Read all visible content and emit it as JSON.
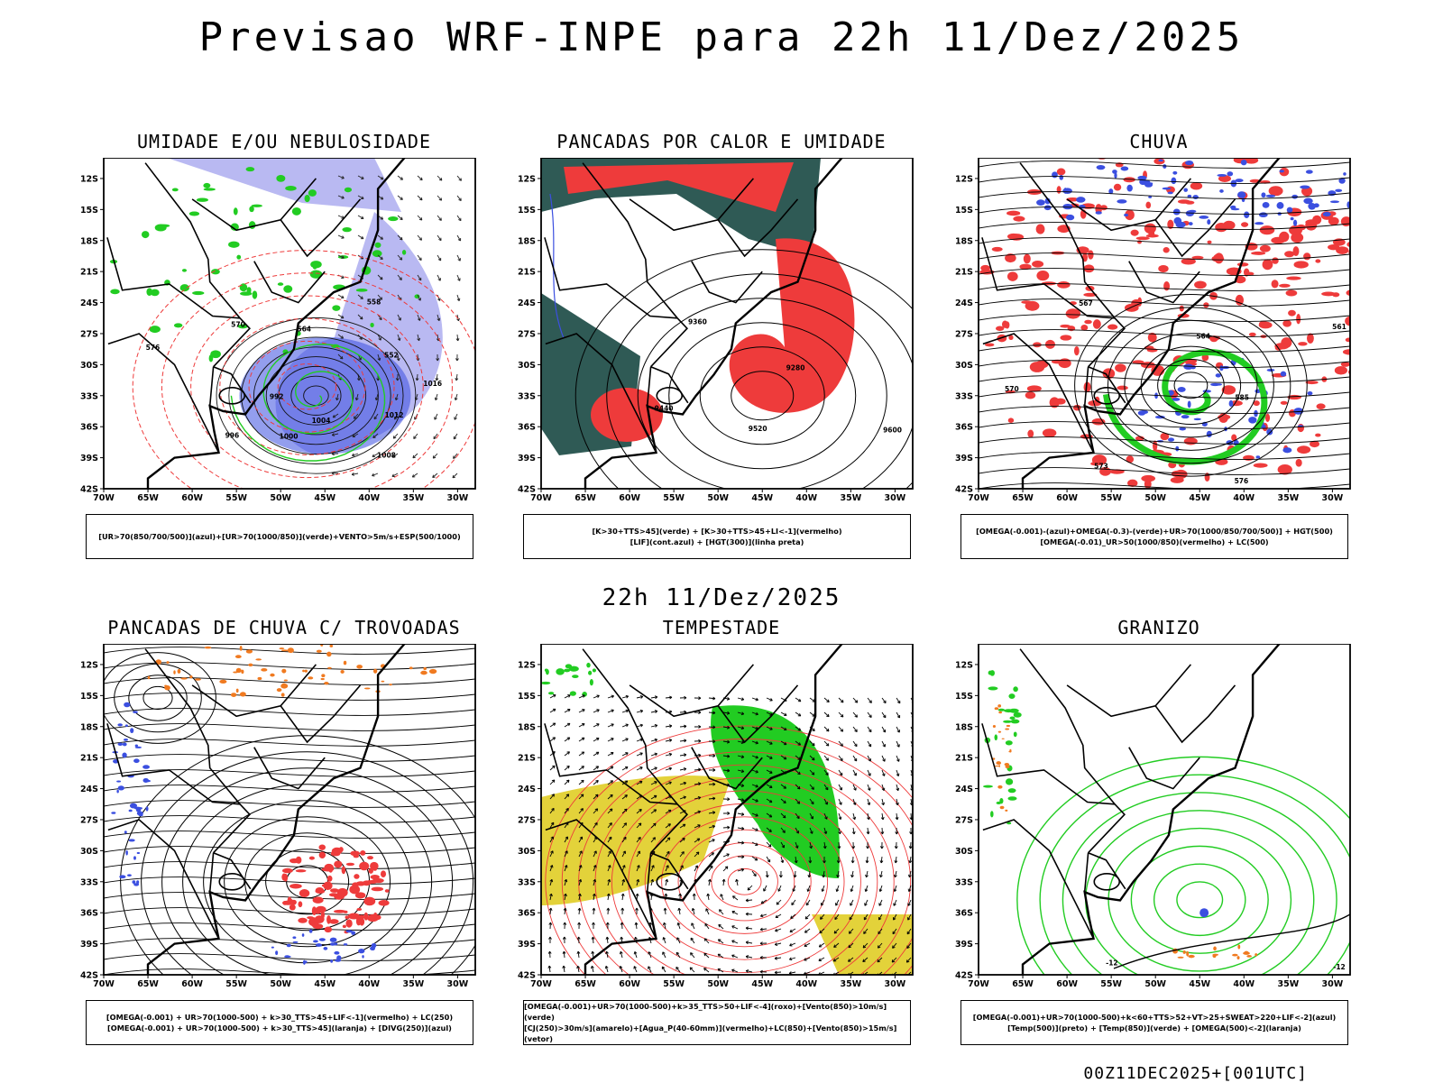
{
  "header": {
    "title": "Previsao WRF-INPE  para 22h 11/Dez/2025",
    "mid_date": "22h 11/Dez/2025"
  },
  "footer": "00Z11DEC2025+[001UTC]",
  "axes": {
    "lat_labels": [
      "12S",
      "15S",
      "18S",
      "21S",
      "24S",
      "27S",
      "30S",
      "33S",
      "36S",
      "39S",
      "42S"
    ],
    "lon_labels": [
      "70W",
      "65W",
      "60W",
      "55W",
      "50W",
      "45W",
      "40W",
      "35W",
      "30W"
    ]
  },
  "panels": [
    {
      "title": "UMIDADE E/OU NEBULOSIDADE",
      "legend": [
        "[UR>70(850/700/500)](azul)+[UR>70(1000/850)](verde)+VENTO>5m/s+ESP(500/1000)"
      ],
      "contour_labels": [
        "1012",
        "1008",
        "1004",
        "1000",
        "996",
        "992",
        "576",
        "570",
        "564",
        "558",
        "552",
        "1016"
      ]
    },
    {
      "title": "PANCADAS POR CALOR E UMIDADE",
      "legend": [
        "[K>30+TTS>45](verde) + [K>30+TTS>45+LI<-1](vermelho)",
        "[LIF](cont.azul) + [HGT(300)](linha preta)"
      ],
      "contour_labels": [
        "9600",
        "9520",
        "9440",
        "9360",
        "9280"
      ]
    },
    {
      "title": "CHUVA",
      "legend": [
        "[OMEGA(-0.001)-(azul)+OMEGA(-0.3)-(verde)+UR>70(1000/850/700/500)] + HGT(500)",
        "[OMEGA(-0.01)_UR>50(1000/850)(vermelho) + LC(500)"
      ],
      "contour_labels": [
        "585",
        "576",
        "573",
        "570",
        "567",
        "564",
        "561"
      ]
    },
    {
      "title": "PANCADAS DE CHUVA C/ TROVOADAS",
      "legend": [
        "[OMEGA(-0.001) + UR>70(1000-500) + k>30_TTS>45+LIF<-1](vermelho) + LC(250)",
        "[OMEGA(-0.001) + UR>70(1000-500) + k>30_TTS>45](laranja) + [DIVG(250)](azul)"
      ],
      "contour_labels": []
    },
    {
      "title": "TEMPESTADE",
      "legend": [
        "[OMEGA(-0.001)+UR>70(1000-500)+k>35_TTS>50+LIF<-4](roxo)+[Vento(850)>10m/s](verde)",
        "[CJ(250)>30m/s](amarelo)+[Agua_P(40-60mm)](vermelho)+LC(850)+[Vento(850)>15m/s](vetor)"
      ],
      "contour_labels": []
    },
    {
      "title": "GRANIZO",
      "legend": [
        "[OMEGA(-0.001)+UR>70(1000-500)+k<60+TTS>52+VT>25+SWEAT>220+LIF<-2](azul)",
        "[Temp(500)](preto) + [Temp(850)](verde) + [OMEGA(500)<-2](laranja)"
      ],
      "contour_labels": [
        "-12",
        "-12"
      ]
    }
  ],
  "chart_data": [
    {
      "type": "map",
      "title": "UMIDADE E/OU NEBULOSIDADE",
      "lon_range": [
        -70,
        -28
      ],
      "lat_range": [
        -42,
        -10
      ],
      "low_center": {
        "lon": -46,
        "lat": -33
      },
      "min_pressure": 992
    },
    {
      "type": "map",
      "title": "PANCADAS POR CALOR E UMIDADE",
      "lon_range": [
        -70,
        -28
      ],
      "lat_range": [
        -42,
        -10
      ],
      "low_center": {
        "lon": -45,
        "lat": -33
      },
      "min_hgt": 9280
    },
    {
      "type": "map",
      "title": "CHUVA",
      "lon_range": [
        -70,
        -28
      ],
      "lat_range": [
        -42,
        -10
      ],
      "low_center": {
        "lon": -46,
        "lat": -32
      },
      "min_hgt": 561
    },
    {
      "type": "map",
      "title": "PANCADAS DE CHUVA C/ TROVOADAS",
      "lon_range": [
        -70,
        -28
      ],
      "lat_range": [
        -42,
        -10
      ],
      "low_center": {
        "lon": -47,
        "lat": -33
      }
    },
    {
      "type": "map",
      "title": "TEMPESTADE",
      "lon_range": [
        -70,
        -28
      ],
      "lat_range": [
        -42,
        -10
      ],
      "low_center": {
        "lon": -47,
        "lat": -33
      }
    },
    {
      "type": "map",
      "title": "GRANIZO",
      "lon_range": [
        -70,
        -28
      ],
      "lat_range": [
        -42,
        -10
      ],
      "isotherm_labels": [
        "-12"
      ]
    }
  ],
  "colors": {
    "blue": "#3b4fe0",
    "lightblue": "#b9b9f2",
    "green": "#22cc22",
    "red": "#ee3b3b",
    "orange": "#f07a20",
    "darkgreen": "#2f5a55",
    "yellow": "#e3d23a",
    "black": "#000000"
  }
}
